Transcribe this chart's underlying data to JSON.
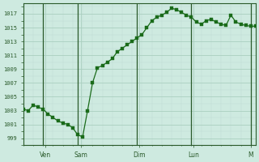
{
  "bg_color": "#ceeae0",
  "line_color": "#1a6b1a",
  "marker_color": "#1a6b1a",
  "grid_color_major": "#aacfbf",
  "grid_color_minor": "#c0ddd4",
  "axis_color": "#2a5a2a",
  "tick_label_color": "#2a5a2a",
  "ylim": [
    998,
    1018.5
  ],
  "yticks": [
    999,
    1001,
    1003,
    1005,
    1007,
    1009,
    1011,
    1013,
    1015,
    1017
  ],
  "day_labels": [
    "Ven",
    "Sam",
    "Dim",
    "Lun",
    "M"
  ],
  "data_x": [
    0,
    1,
    2,
    3,
    4,
    5,
    6,
    7,
    8,
    9,
    10,
    11,
    12,
    13,
    14,
    15,
    16,
    17,
    18,
    19,
    20,
    21,
    22,
    23,
    24,
    25,
    26,
    27,
    28,
    29,
    30,
    31,
    32,
    33,
    34,
    35,
    36,
    37,
    38,
    39,
    40,
    41,
    42,
    43,
    44,
    45,
    46,
    47
  ],
  "data_y": [
    1003.2,
    1003.0,
    1003.8,
    1003.5,
    1003.2,
    1002.5,
    1002.0,
    1001.5,
    1001.2,
    1001.0,
    1000.5,
    999.5,
    999.2,
    1003.0,
    1007.0,
    1009.2,
    1009.5,
    1010.0,
    1010.5,
    1011.5,
    1012.0,
    1012.5,
    1013.0,
    1013.5,
    1014.0,
    1015.0,
    1016.0,
    1016.5,
    1016.8,
    1017.2,
    1017.8,
    1017.6,
    1017.2,
    1016.8,
    1016.5,
    1015.8,
    1015.5,
    1016.0,
    1016.2,
    1015.8,
    1015.5,
    1015.3,
    1016.8,
    1015.8,
    1015.5,
    1015.3,
    1015.2,
    1015.2
  ]
}
